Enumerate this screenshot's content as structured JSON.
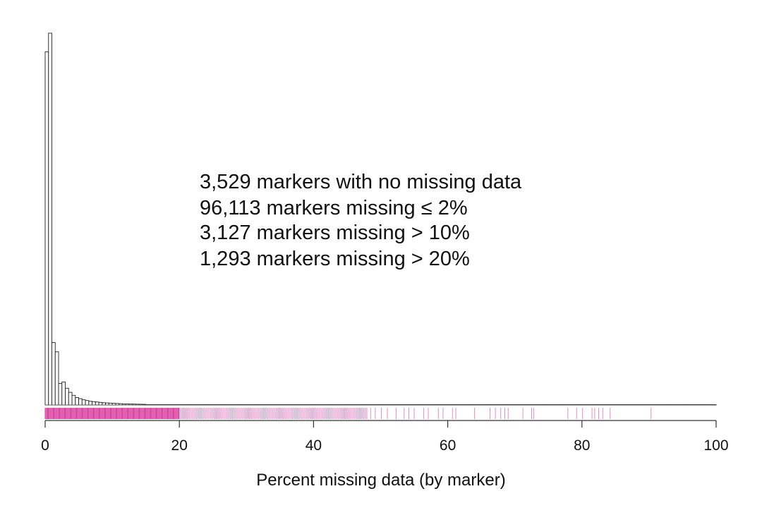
{
  "chart_data": {
    "type": "bar",
    "title": "",
    "xlabel": "Percent missing data (by marker)",
    "ylabel": "",
    "xlim": [
      0,
      100
    ],
    "xticks": [
      "0",
      "20",
      "40",
      "60",
      "80",
      "100"
    ],
    "y_axis_shown": false,
    "bin_width": 0.5,
    "bins_from": 0,
    "relative_heights_note": "no y-axis printed; heights relative to tallest bar = 1",
    "values": [
      0.95,
      1.0,
      0.168,
      0.143,
      0.058,
      0.062,
      0.045,
      0.034,
      0.026,
      0.02,
      0.017,
      0.014,
      0.012,
      0.01,
      0.009,
      0.008,
      0.007,
      0.006,
      0.0055,
      0.005,
      0.0045,
      0.004,
      0.0035,
      0.003,
      0.0028,
      0.0026,
      0.0024,
      0.0022,
      0.002,
      0.0018
    ],
    "tail_level": 0.0008,
    "annotations": [
      "3,529 markers with no missing data",
      "96,113 markers missing ≤ 2%",
      "3,127 markers missing > 10%",
      "1,293 markers missing > 20%"
    ],
    "rug": {
      "color": "#d0158a",
      "dense_until": 20,
      "medium_until": 48,
      "sparse_positions": [
        48.5,
        49.2,
        50.1,
        51.0,
        52.3,
        53.5,
        54.2,
        55.0,
        56.4,
        57.1,
        58.6,
        59.3,
        60.7,
        61.2,
        64.0,
        66.3,
        67.1,
        67.9,
        68.5,
        69.0,
        71.2,
        72.5,
        72.8,
        77.9,
        79.2,
        80.1,
        81.5,
        81.9,
        82.5,
        83.1,
        84.2,
        90.3
      ]
    }
  }
}
